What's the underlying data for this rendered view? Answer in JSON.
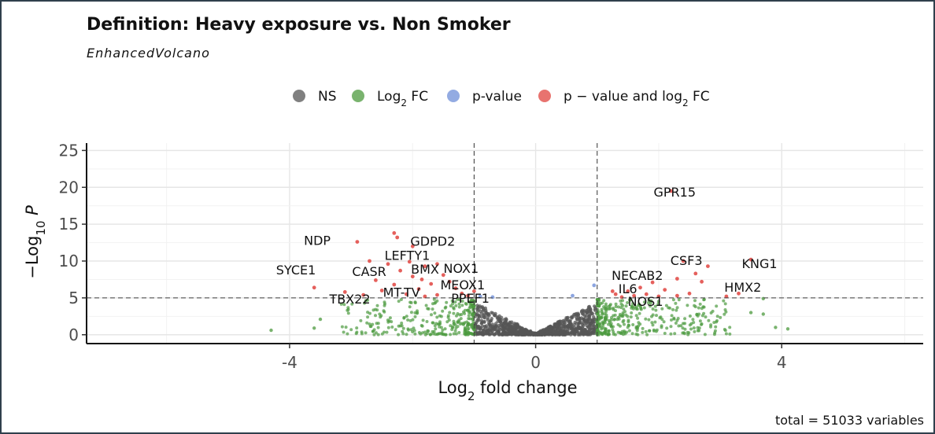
{
  "header": {
    "title": "Definition: Heavy exposure vs. Non Smoker",
    "subtitle": "EnhancedVolcano",
    "caption": "total = 51033 variables"
  },
  "legend": [
    {
      "key": "ns",
      "color": "#555555",
      "text": "NS"
    },
    {
      "key": "log2fc",
      "color": "#4c9a3e",
      "text": "Log",
      "sub": "2",
      "tail": " FC"
    },
    {
      "key": "pvalue",
      "color": "#6f8fd8",
      "text": "p-value"
    },
    {
      "key": "both",
      "color": "#e0443f",
      "text": "p − value and log",
      "sub": "2",
      "tail": " FC"
    }
  ],
  "chart_data": {
    "type": "scatter",
    "title": "Definition: Heavy exposure vs. Non Smoker",
    "subtitle": "EnhancedVolcano",
    "xlabel": "Log2 fold change",
    "ylabel": "−Log10 P",
    "xlim": [
      -7.3,
      6.3
    ],
    "ylim": [
      -1.2,
      26
    ],
    "x_ticks": [
      -4,
      0,
      4
    ],
    "y_ticks": [
      0,
      5,
      10,
      15,
      20,
      25
    ],
    "grid": true,
    "legend_position": "top",
    "fc_cutoff": 1,
    "p_cutoff_log10": 5,
    "colors": {
      "ns": "#555555",
      "log2fc": "#4c9a3e",
      "pvalue": "#6f8fd8",
      "both": "#e0443f"
    },
    "labeled_points": [
      {
        "gene": "GPR15",
        "x": 2.2,
        "y": 19.4
      },
      {
        "gene": "NDP",
        "x": -3.0,
        "y": 12.2
      },
      {
        "gene": "GDPD2",
        "x": -2.1,
        "y": 12.5
      },
      {
        "gene": "LEFTY1",
        "x": -2.2,
        "y": 10.6
      },
      {
        "gene": "SYCE1",
        "x": -3.4,
        "y": 8.6
      },
      {
        "gene": "CASR",
        "x": -2.6,
        "y": 8.4
      },
      {
        "gene": "BMX",
        "x": -1.9,
        "y": 8.3
      },
      {
        "gene": "NOX1",
        "x": -1.6,
        "y": 8.4
      },
      {
        "gene": "MEOX1",
        "x": -1.6,
        "y": 6.6
      },
      {
        "gene": "MT-TV",
        "x": -2.2,
        "y": 5.6
      },
      {
        "gene": "TBX22",
        "x": -3.2,
        "y": 5.3
      },
      {
        "gene": "PPEF1",
        "x": -1.4,
        "y": 5.0
      },
      {
        "gene": "CSF3",
        "x": 2.6,
        "y": 10.3
      },
      {
        "gene": "KNG1",
        "x": 3.3,
        "y": 10.1
      },
      {
        "gene": "NECAB2",
        "x": 1.9,
        "y": 8.1
      },
      {
        "gene": "IL6",
        "x": 1.5,
        "y": 6.5
      },
      {
        "gene": "NOS1",
        "x": 1.6,
        "y": 5.0
      },
      {
        "gene": "HMX2",
        "x": 3.4,
        "y": 5.4
      }
    ]
  }
}
